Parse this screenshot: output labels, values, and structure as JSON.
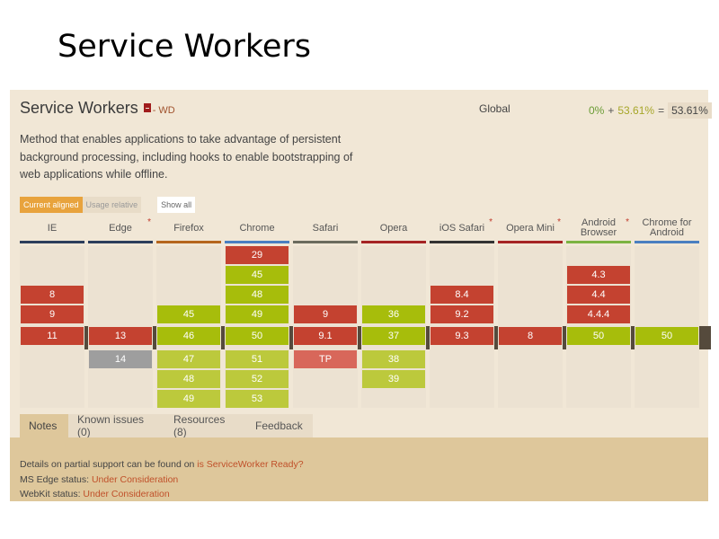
{
  "slide": {
    "title": "Service Workers"
  },
  "feature": {
    "title": "Service Workers",
    "spec_icon": "document-icon",
    "spec_status": "- WD",
    "description": "Method that enables applications to take advantage of persistent background processing, including hooks to enable bootstrapping of web applications while offline.",
    "global_label": "Global",
    "usage": {
      "supported": "0%",
      "plus": "+",
      "partial": "53.61%",
      "equals": "=",
      "total": "53.61%"
    }
  },
  "view_buttons": {
    "current_aligned": "Current aligned",
    "usage_relative": "Usage relative",
    "show_all": "Show all"
  },
  "colors": {
    "unsupported": "#c44230",
    "partial": "#a7bd0b",
    "future_partial": "#bcc93c",
    "unknown": "#9e9e9e",
    "preview": "#d8675a",
    "accent": "#e8a33d"
  },
  "browsers": [
    {
      "name": "IE",
      "bar": "#2c3e5c",
      "star": false,
      "versions": [
        {
          "v": "8",
          "row": 2,
          "s": "n"
        },
        {
          "v": "9",
          "row": 3,
          "s": "n"
        },
        {
          "v": "11",
          "row": 4,
          "s": "n"
        }
      ]
    },
    {
      "name": "Edge",
      "bar": "#2c3e5c",
      "star": true,
      "versions": [
        {
          "v": "13",
          "row": 4,
          "s": "n"
        },
        {
          "v": "14",
          "row": 5,
          "s": "u"
        }
      ]
    },
    {
      "name": "Firefox",
      "bar": "#b5651d",
      "star": false,
      "versions": [
        {
          "v": "45",
          "row": 3,
          "s": "y"
        },
        {
          "v": "46",
          "row": 4,
          "s": "y"
        },
        {
          "v": "47",
          "row": 5,
          "s": "yf"
        },
        {
          "v": "48",
          "row": 6,
          "s": "yf"
        },
        {
          "v": "49",
          "row": 7,
          "s": "yf"
        }
      ]
    },
    {
      "name": "Chrome",
      "bar": "#4a7fc0",
      "star": false,
      "versions": [
        {
          "v": "29",
          "row": 0,
          "s": "n"
        },
        {
          "v": "45",
          "row": 1,
          "s": "y"
        },
        {
          "v": "48",
          "row": 2,
          "s": "y"
        },
        {
          "v": "49",
          "row": 3,
          "s": "y"
        },
        {
          "v": "50",
          "row": 4,
          "s": "y"
        },
        {
          "v": "51",
          "row": 5,
          "s": "yf"
        },
        {
          "v": "52",
          "row": 6,
          "s": "yf"
        },
        {
          "v": "53",
          "row": 7,
          "s": "yf"
        }
      ]
    },
    {
      "name": "Safari",
      "bar": "#6b6b5e",
      "star": false,
      "versions": [
        {
          "v": "9",
          "row": 3,
          "s": "n"
        },
        {
          "v": "9.1",
          "row": 4,
          "s": "n"
        },
        {
          "v": "TP",
          "row": 5,
          "s": "tp"
        }
      ]
    },
    {
      "name": "Opera",
      "bar": "#a52424",
      "star": false,
      "versions": [
        {
          "v": "36",
          "row": 3,
          "s": "y"
        },
        {
          "v": "37",
          "row": 4,
          "s": "y"
        },
        {
          "v": "38",
          "row": 5,
          "s": "yf"
        },
        {
          "v": "39",
          "row": 6,
          "s": "yf"
        }
      ]
    },
    {
      "name": "iOS Safari",
      "bar": "#333333",
      "star": true,
      "versions": [
        {
          "v": "8.4",
          "row": 2,
          "s": "n"
        },
        {
          "v": "9.2",
          "row": 3,
          "s": "n"
        },
        {
          "v": "9.3",
          "row": 4,
          "s": "n"
        }
      ]
    },
    {
      "name": "Opera Mini",
      "bar": "#a52424",
      "star": true,
      "versions": [
        {
          "v": "8",
          "row": 4,
          "s": "n"
        }
      ]
    },
    {
      "name": "Android Browser",
      "bar": "#7cb342",
      "star": true,
      "versions": [
        {
          "v": "4.3",
          "row": 1,
          "s": "n"
        },
        {
          "v": "4.4",
          "row": 2,
          "s": "n"
        },
        {
          "v": "4.4.4",
          "row": 3,
          "s": "n"
        },
        {
          "v": "50",
          "row": 4,
          "s": "y"
        }
      ]
    },
    {
      "name": "Chrome for Android",
      "bar": "#4a7fc0",
      "star": false,
      "versions": [
        {
          "v": "50",
          "row": 4,
          "s": "y"
        }
      ]
    }
  ],
  "tabs": [
    {
      "label": "Notes",
      "active": true
    },
    {
      "label": "Known issues (0)",
      "active": false
    },
    {
      "label": "Resources (8)",
      "active": false
    },
    {
      "label": "Feedback",
      "active": false
    }
  ],
  "notes": {
    "line1_text": "Details on partial support can be found on ",
    "line1_link": "is ServiceWorker Ready?",
    "line2_text": "MS Edge status: ",
    "line2_link": "Under Consideration",
    "line3_text": "WebKit status: ",
    "line3_link": "Under Consideration"
  }
}
